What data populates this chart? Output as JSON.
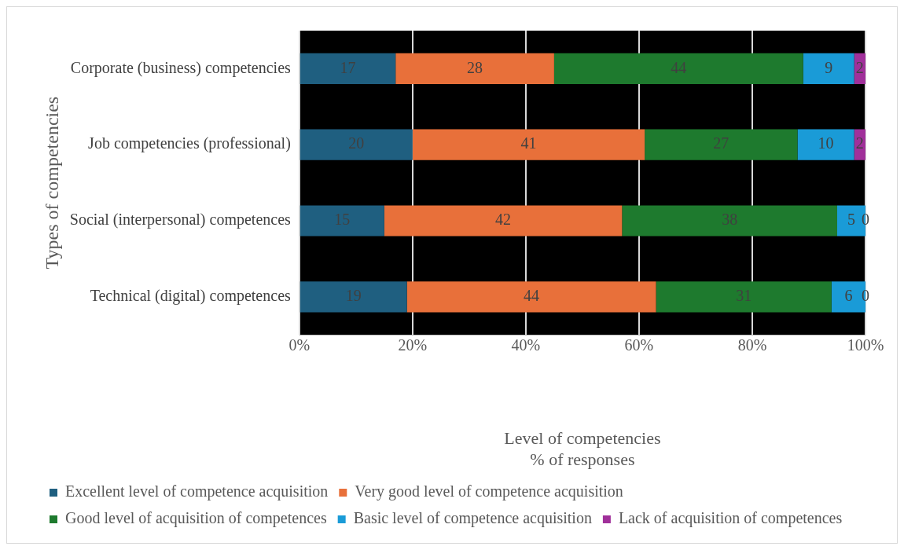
{
  "chart_data": {
    "type": "bar",
    "orientation": "horizontal",
    "stacked": true,
    "categories": [
      "Corporate (business) competencies",
      "Job competencies (professional)",
      "Social (interpersonal) competences",
      "Technical (digital) competences"
    ],
    "series": [
      {
        "name": "Excellent level of competence acquisition",
        "color": "#1f5f80",
        "values": [
          17,
          20,
          15,
          19
        ]
      },
      {
        "name": "Very good level of competence acquisition",
        "color": "#e8703a",
        "values": [
          28,
          41,
          42,
          44
        ]
      },
      {
        "name": "Good level of acquisition of competences",
        "color": "#1e7a2e",
        "values": [
          44,
          27,
          38,
          31
        ]
      },
      {
        "name": "Basic level of competence acquisition",
        "color": "#1a9bd7",
        "values": [
          9,
          10,
          5,
          6
        ]
      },
      {
        "name": "Lack of acquisition of competences",
        "color": "#a0309a",
        "values": [
          2,
          2,
          0,
          0
        ]
      }
    ],
    "xlim": [
      0,
      100
    ],
    "xticks": [
      {
        "value": 0,
        "label": "0%"
      },
      {
        "value": 20,
        "label": "20%"
      },
      {
        "value": 40,
        "label": "40%"
      },
      {
        "value": 60,
        "label": "60%"
      },
      {
        "value": 80,
        "label": "80%"
      },
      {
        "value": 100,
        "label": "100%"
      }
    ],
    "xlabel": "Level of competencies\n% of responses",
    "ylabel": "Types of competencies",
    "grid": "x",
    "legend": "bottom",
    "data_labels": true
  }
}
